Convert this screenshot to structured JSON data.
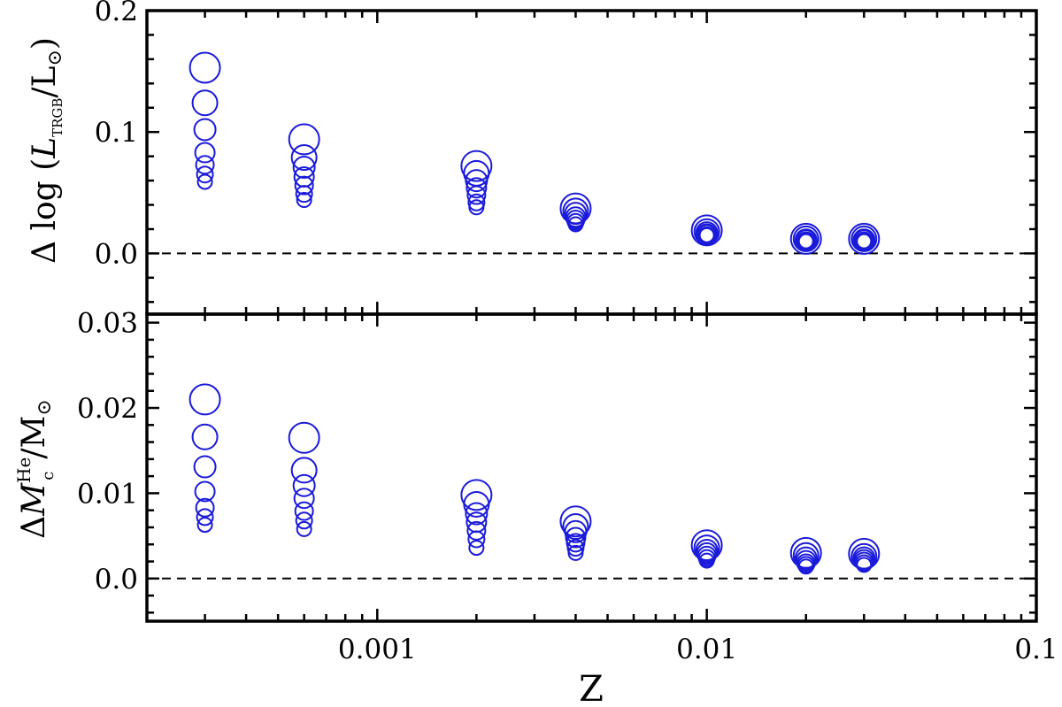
{
  "chart_data": [
    {
      "type": "scatter",
      "panel": "top",
      "xscale": "log",
      "xlim": [
        0.0002,
        0.1
      ],
      "ylim": [
        -0.05,
        0.2
      ],
      "ylabel_parts": {
        "main": "Δ log (",
        "var": "L",
        "sub": "TRGB",
        "tail": "/L",
        "sun": "⊙",
        "close": ")"
      },
      "yticks": [
        0.0,
        0.1,
        0.2
      ],
      "yticklabels": [
        "0.0",
        "0.1",
        "0.2"
      ],
      "reference_line": 0.0,
      "grid": false,
      "marker_color": "#1a1adb",
      "series": [
        {
          "x": 0.0003,
          "y": [
            0.153,
            0.124,
            0.102,
            0.083,
            0.073,
            0.065,
            0.059
          ]
        },
        {
          "x": 0.0006,
          "y": [
            0.094,
            0.079,
            0.071,
            0.063,
            0.056,
            0.049,
            0.044
          ]
        },
        {
          "x": 0.002,
          "y": [
            0.072,
            0.066,
            0.06,
            0.054,
            0.048,
            0.042,
            0.038
          ]
        },
        {
          "x": 0.004,
          "y": [
            0.037,
            0.035,
            0.033,
            0.03,
            0.028,
            0.026,
            0.024
          ]
        },
        {
          "x": 0.01,
          "y": [
            0.019,
            0.018,
            0.017,
            0.016,
            0.016,
            0.015,
            0.015
          ]
        },
        {
          "x": 0.02,
          "y": [
            0.012,
            0.012,
            0.011,
            0.011,
            0.01,
            0.01,
            0.01
          ]
        },
        {
          "x": 0.03,
          "y": [
            0.012,
            0.012,
            0.011,
            0.011,
            0.01,
            0.01,
            0.01
          ]
        }
      ]
    },
    {
      "type": "scatter",
      "panel": "bottom",
      "xscale": "log",
      "xlim": [
        0.0002,
        0.1
      ],
      "ylim": [
        -0.005,
        0.031
      ],
      "xlabel": "Z",
      "ylabel_parts": {
        "main": "Δ",
        "var": "M",
        "sup": "He",
        "sub": "c",
        "tail": "/M",
        "sun": "⊙"
      },
      "yticks": [
        0.0,
        0.01,
        0.02,
        0.03
      ],
      "yticklabels": [
        "0.0",
        "0.01",
        "0.02",
        "0.03"
      ],
      "xticks": [
        0.001,
        0.01,
        0.1
      ],
      "xticklabels": [
        "0.001",
        "0.01",
        "0.1"
      ],
      "reference_line": 0.0,
      "grid": false,
      "marker_color": "#1a1adb",
      "series": [
        {
          "x": 0.0003,
          "y": [
            0.021,
            0.0166,
            0.0131,
            0.0102,
            0.0083,
            0.0072,
            0.0063
          ]
        },
        {
          "x": 0.0006,
          "y": [
            0.0165,
            0.0127,
            0.0109,
            0.0094,
            0.0079,
            0.0068,
            0.0058
          ]
        },
        {
          "x": 0.002,
          "y": [
            0.0098,
            0.0087,
            0.0076,
            0.0066,
            0.0056,
            0.0046,
            0.0036
          ]
        },
        {
          "x": 0.004,
          "y": [
            0.0067,
            0.0061,
            0.0055,
            0.0048,
            0.0042,
            0.0036,
            0.003
          ]
        },
        {
          "x": 0.01,
          "y": [
            0.0039,
            0.0036,
            0.0033,
            0.003,
            0.0027,
            0.0024,
            0.0021
          ]
        },
        {
          "x": 0.02,
          "y": [
            0.003,
            0.0027,
            0.0024,
            0.0021,
            0.0018,
            0.0016,
            0.0014
          ]
        },
        {
          "x": 0.03,
          "y": [
            0.0029,
            0.0026,
            0.0024,
            0.0022,
            0.002,
            0.0018,
            0.0016
          ]
        }
      ]
    }
  ]
}
